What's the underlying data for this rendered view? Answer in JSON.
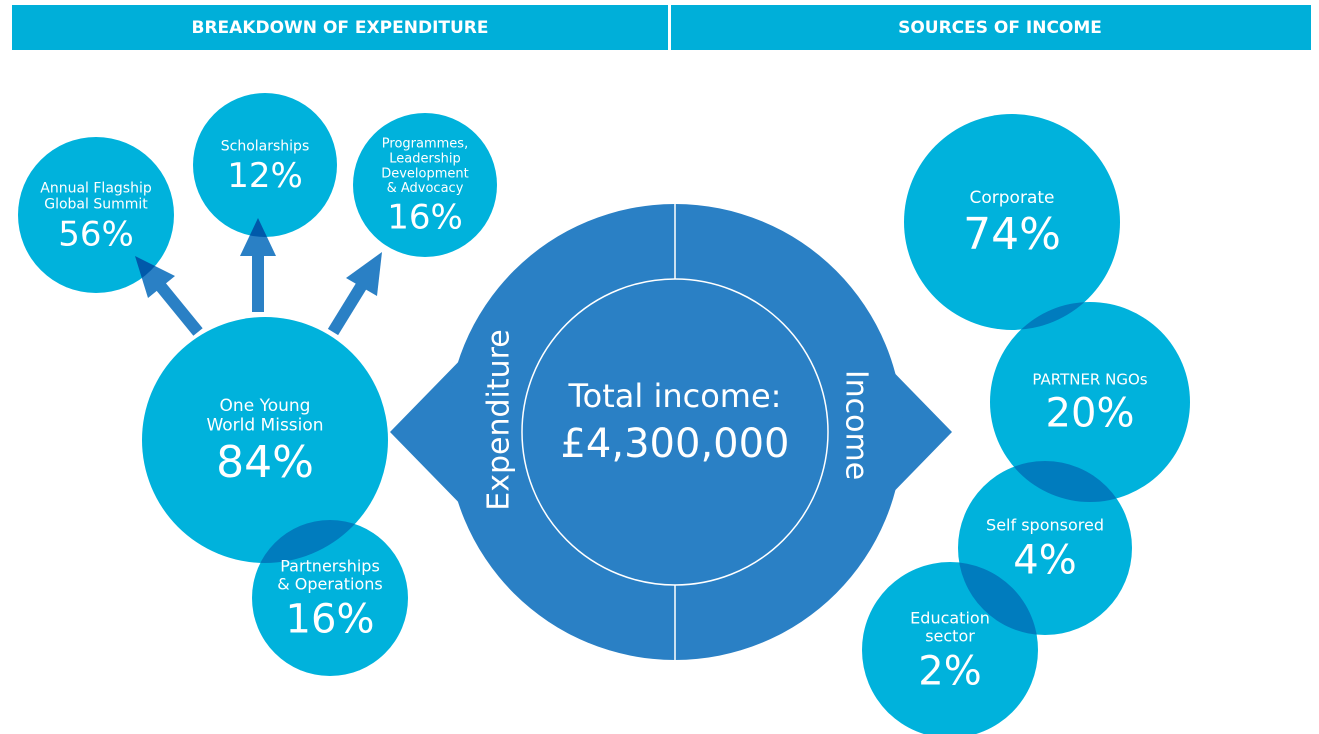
{
  "header": {
    "left": "BREAKDOWN OF EXPENDITURE",
    "right": "SOURCES OF INCOME"
  },
  "expenditure": [
    {
      "lines": [
        "Annual Flagship",
        "Global Summit"
      ],
      "percent": "56%"
    },
    {
      "lines": [
        "Scholarships"
      ],
      "percent": "12%"
    },
    {
      "lines": [
        "Programmes,",
        "Leadership",
        "Development",
        "& Advocacy"
      ],
      "percent": "16%"
    },
    {
      "lines": [
        "One Young",
        "World Mission"
      ],
      "percent": "84%"
    },
    {
      "lines": [
        "Partnerships",
        "& Operations"
      ],
      "percent": "16%"
    }
  ],
  "center": {
    "left": "Expenditure",
    "right": "Income",
    "title": "Total income:",
    "total": "£4,300,000"
  },
  "income": [
    {
      "lines": [
        "Corporate"
      ],
      "percent": "74%"
    },
    {
      "lines": [
        "PARTNER NGOs"
      ],
      "percent": "20%"
    },
    {
      "lines": [
        "Self sponsored"
      ],
      "percent": "4%"
    },
    {
      "lines": [
        "Education",
        "sector"
      ],
      "percent": "2%"
    }
  ]
}
